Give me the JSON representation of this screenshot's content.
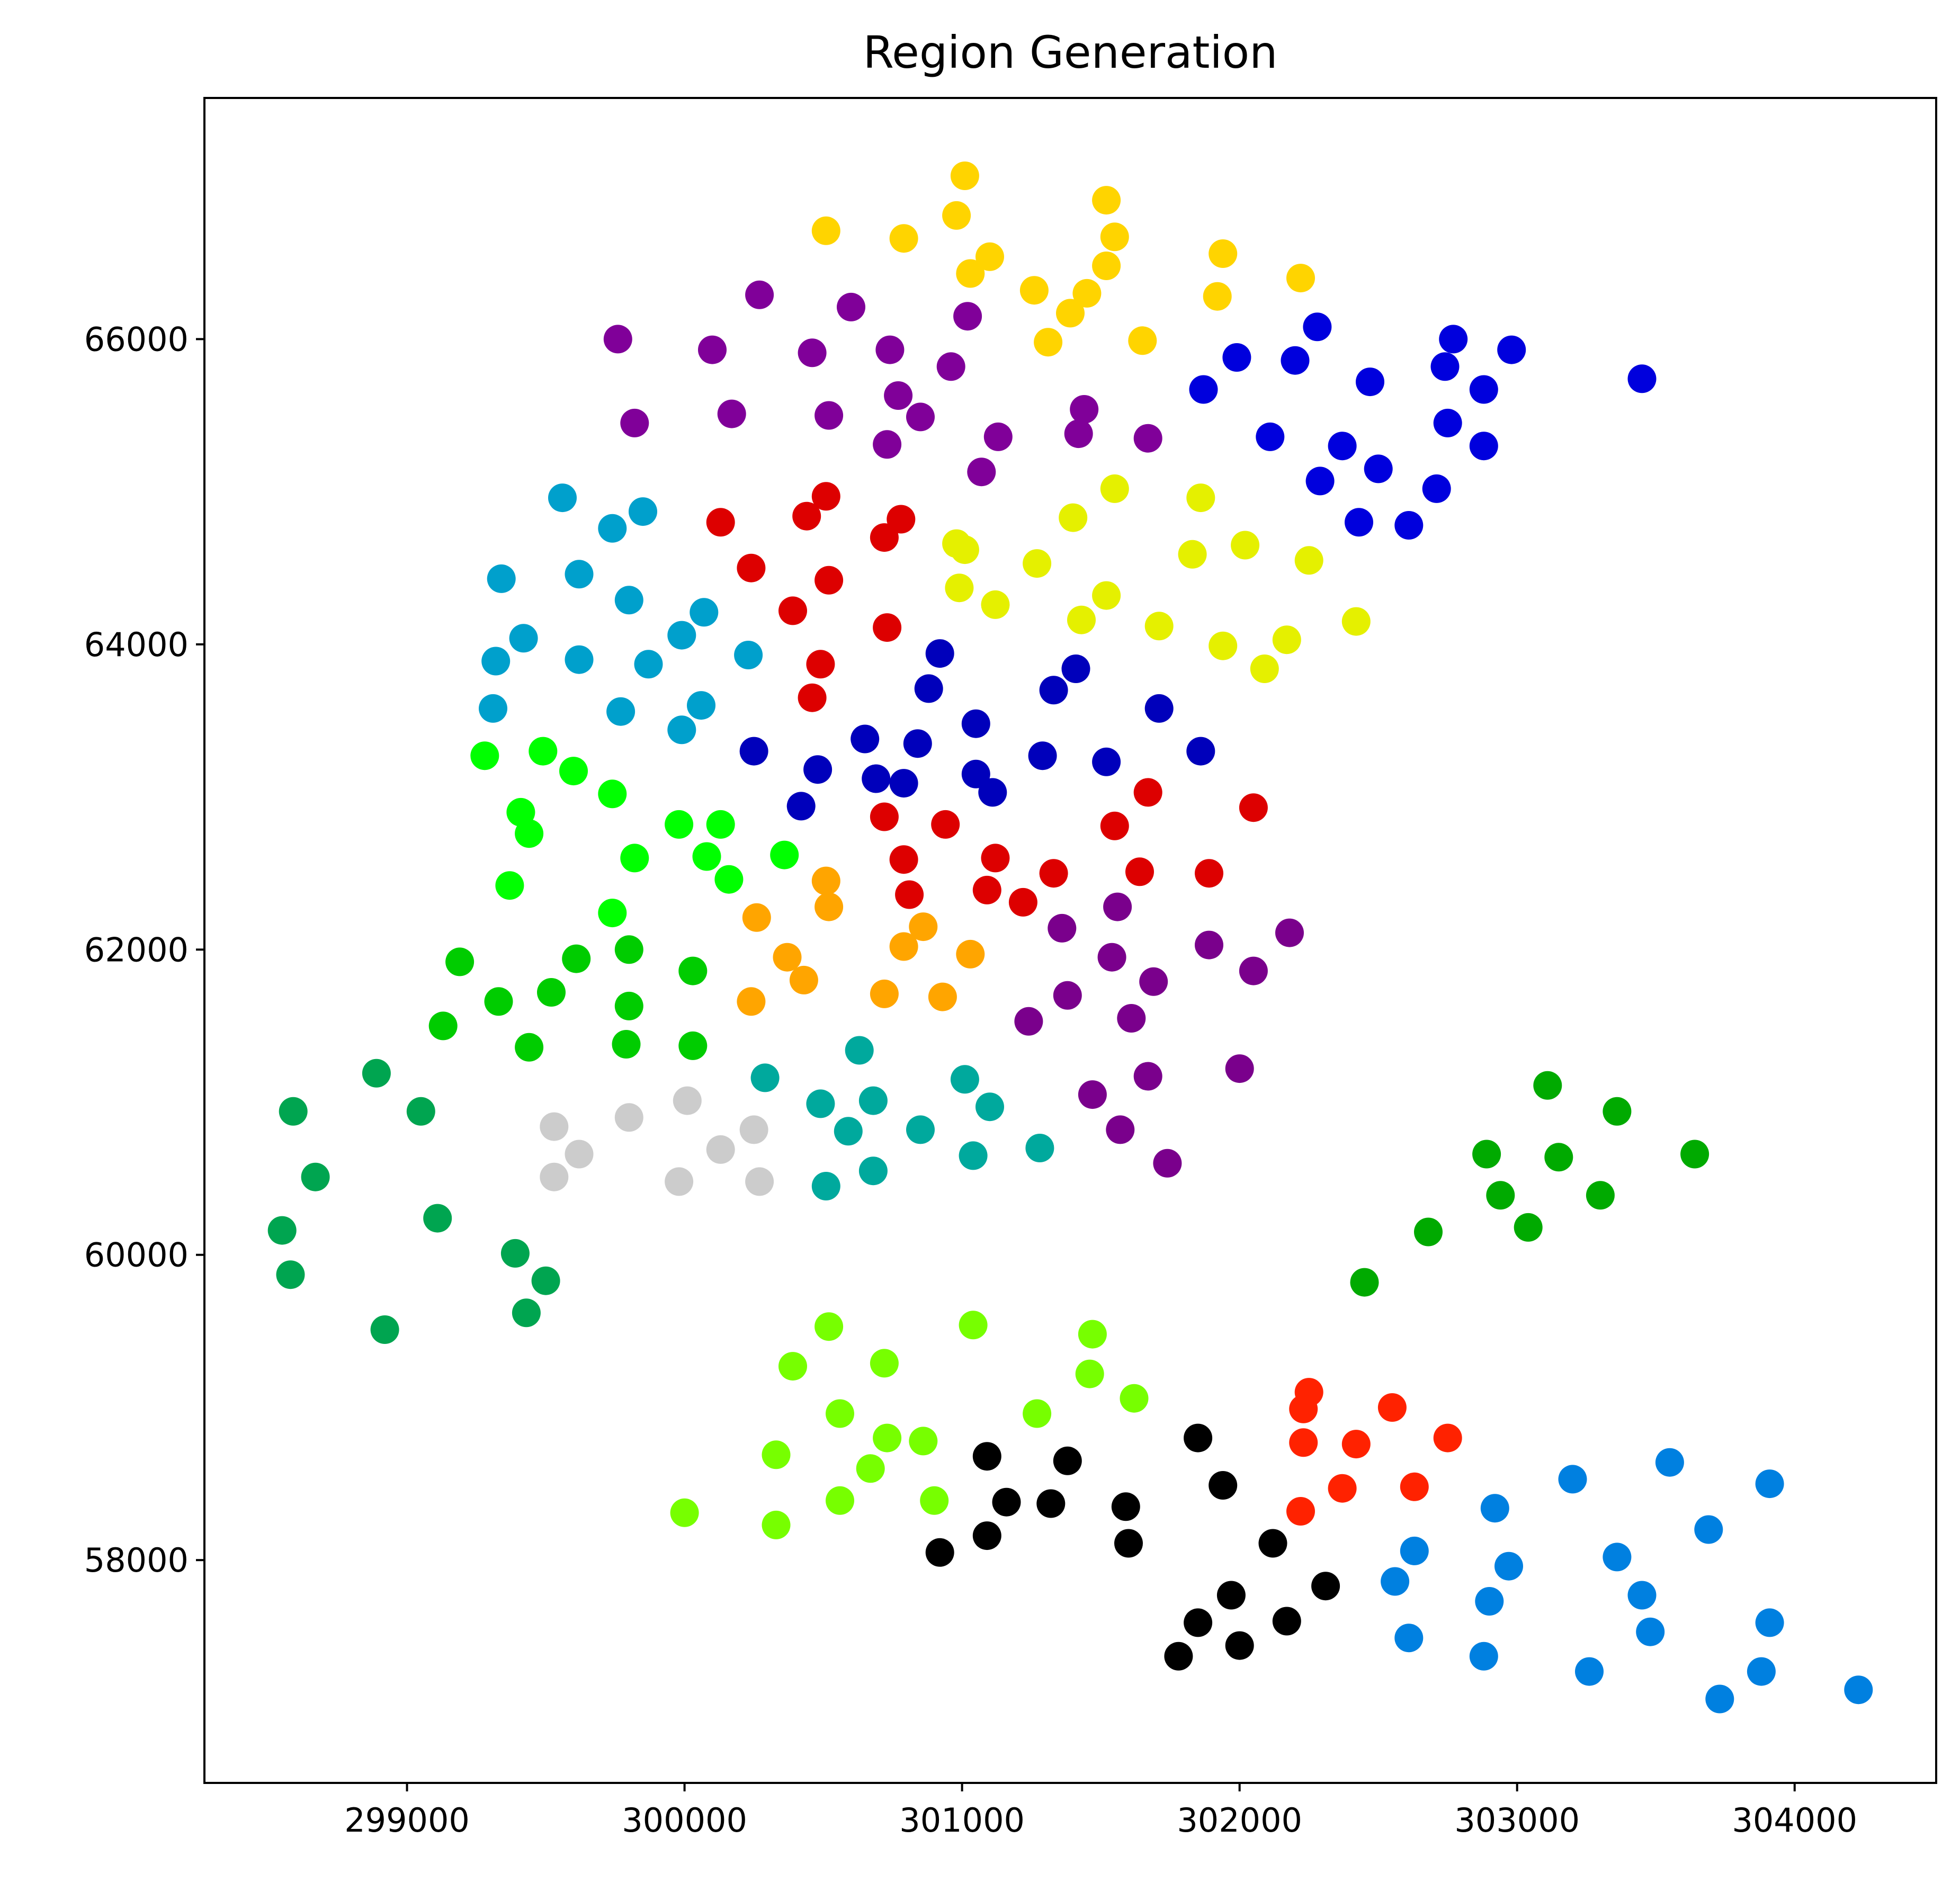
{
  "chart_data": {
    "type": "scatter",
    "title": "Region Generation",
    "xlabel": "",
    "ylabel": "",
    "xlim": [
      298270,
      304510
    ],
    "ylim": [
      56540,
      67580
    ],
    "xticks": [
      299000,
      300000,
      301000,
      302000,
      303000,
      304000
    ],
    "yticks": [
      58000,
      60000,
      62000,
      64000,
      66000
    ],
    "grid": false,
    "legend": "none",
    "marker": "circle",
    "regions": [
      {
        "color": "#ffd400",
        "points": [
          [
            301010,
            67070
          ],
          [
            300980,
            66810
          ],
          [
            301520,
            66910
          ],
          [
            300510,
            66710
          ],
          [
            300790,
            66660
          ],
          [
            301550,
            66670
          ],
          [
            301100,
            66540
          ],
          [
            301030,
            66430
          ],
          [
            301520,
            66480
          ],
          [
            301940,
            66560
          ],
          [
            302220,
            66400
          ],
          [
            301260,
            66320
          ],
          [
            301450,
            66300
          ],
          [
            301390,
            66170
          ],
          [
            301920,
            66280
          ],
          [
            301310,
            65980
          ],
          [
            301650,
            65990
          ]
        ]
      },
      {
        "color": "#800099",
        "points": [
          [
            300270,
            66290
          ],
          [
            300600,
            66210
          ],
          [
            301020,
            66150
          ],
          [
            299760,
            66000
          ],
          [
            300100,
            65930
          ],
          [
            300460,
            65910
          ],
          [
            300740,
            65930
          ],
          [
            300960,
            65820
          ],
          [
            300770,
            65630
          ],
          [
            300170,
            65510
          ],
          [
            300520,
            65500
          ],
          [
            300850,
            65490
          ],
          [
            299820,
            65450
          ],
          [
            301440,
            65540
          ],
          [
            300730,
            65310
          ],
          [
            301130,
            65360
          ],
          [
            301420,
            65380
          ],
          [
            301670,
            65350
          ],
          [
            301070,
            65130
          ]
        ]
      },
      {
        "color": "#0000dd",
        "points": [
          [
            302280,
            66080
          ],
          [
            302770,
            66000
          ],
          [
            302980,
            65930
          ],
          [
            301990,
            65880
          ],
          [
            302200,
            65860
          ],
          [
            302740,
            65820
          ],
          [
            302470,
            65720
          ],
          [
            303450,
            65740
          ],
          [
            301870,
            65670
          ],
          [
            302880,
            65670
          ],
          [
            302750,
            65450
          ],
          [
            302110,
            65360
          ],
          [
            302370,
            65300
          ],
          [
            302880,
            65300
          ],
          [
            302500,
            65150
          ],
          [
            302290,
            65070
          ],
          [
            302710,
            65020
          ],
          [
            302430,
            64800
          ],
          [
            302610,
            64780
          ]
        ]
      },
      {
        "color": "#00a0cc",
        "points": [
          [
            299560,
            64960
          ],
          [
            299850,
            64870
          ],
          [
            299740,
            64760
          ],
          [
            299340,
            64430
          ],
          [
            299620,
            64460
          ],
          [
            299800,
            64290
          ],
          [
            300070,
            64210
          ],
          [
            299990,
            64060
          ],
          [
            299420,
            64040
          ],
          [
            300230,
            63930
          ],
          [
            299320,
            63890
          ],
          [
            299620,
            63900
          ],
          [
            299870,
            63870
          ],
          [
            299310,
            63580
          ],
          [
            299770,
            63560
          ],
          [
            300060,
            63600
          ],
          [
            299990,
            63440
          ]
        ]
      },
      {
        "color": "#dd0000",
        "points": [
          [
            300510,
            64970
          ],
          [
            300130,
            64800
          ],
          [
            300440,
            64840
          ],
          [
            300780,
            64820
          ],
          [
            300720,
            64700
          ],
          [
            300240,
            64500
          ],
          [
            300520,
            64420
          ],
          [
            300390,
            64220
          ],
          [
            300730,
            64110
          ],
          [
            300490,
            63870
          ],
          [
            300460,
            63650
          ],
          [
            301670,
            63030
          ],
          [
            302050,
            62930
          ],
          [
            300720,
            62870
          ],
          [
            300940,
            62820
          ],
          [
            301550,
            62810
          ],
          [
            300790,
            62590
          ],
          [
            301120,
            62600
          ],
          [
            301330,
            62500
          ],
          [
            301640,
            62510
          ],
          [
            301890,
            62500
          ],
          [
            300810,
            62360
          ],
          [
            301090,
            62390
          ],
          [
            301220,
            62310
          ]
        ]
      },
      {
        "color": "#e5f000",
        "points": [
          [
            301550,
            65020
          ],
          [
            301860,
            64960
          ],
          [
            301400,
            64830
          ],
          [
            300980,
            64660
          ],
          [
            301010,
            64620
          ],
          [
            302020,
            64650
          ],
          [
            301830,
            64590
          ],
          [
            302250,
            64550
          ],
          [
            301270,
            64530
          ],
          [
            300990,
            64370
          ],
          [
            301520,
            64320
          ],
          [
            301120,
            64260
          ],
          [
            301430,
            64160
          ],
          [
            302420,
            64150
          ],
          [
            301710,
            64120
          ],
          [
            302170,
            64030
          ],
          [
            301940,
            63990
          ],
          [
            302090,
            63840
          ]
        ]
      },
      {
        "color": "#0000bb",
        "points": [
          [
            300920,
            63940
          ],
          [
            301410,
            63840
          ],
          [
            300880,
            63710
          ],
          [
            301330,
            63700
          ],
          [
            301710,
            63580
          ],
          [
            301050,
            63480
          ],
          [
            300650,
            63380
          ],
          [
            300840,
            63350
          ],
          [
            300250,
            63300
          ],
          [
            301290,
            63270
          ],
          [
            301520,
            63230
          ],
          [
            301860,
            63300
          ],
          [
            300480,
            63180
          ],
          [
            301050,
            63150
          ],
          [
            300690,
            63120
          ],
          [
            300790,
            63090
          ],
          [
            301110,
            63030
          ],
          [
            300420,
            62940
          ]
        ]
      },
      {
        "color": "#00ff00",
        "points": [
          [
            299490,
            63300
          ],
          [
            299280,
            63270
          ],
          [
            299600,
            63170
          ],
          [
            299740,
            63020
          ],
          [
            299410,
            62900
          ],
          [
            299440,
            62760
          ],
          [
            299980,
            62820
          ],
          [
            300130,
            62820
          ],
          [
            300360,
            62620
          ],
          [
            299820,
            62600
          ],
          [
            300080,
            62610
          ],
          [
            300160,
            62460
          ],
          [
            299370,
            62420
          ],
          [
            299740,
            62240
          ]
        ]
      },
      {
        "color": "#ffa500",
        "points": [
          [
            300510,
            62450
          ],
          [
            300520,
            62280
          ],
          [
            300260,
            62210
          ],
          [
            300860,
            62150
          ],
          [
            300790,
            62020
          ],
          [
            301030,
            61970
          ],
          [
            300370,
            61950
          ],
          [
            300430,
            61800
          ],
          [
            300720,
            61710
          ],
          [
            300930,
            61690
          ],
          [
            300240,
            61660
          ]
        ]
      },
      {
        "color": "#7a008c",
        "points": [
          [
            301360,
            62140
          ],
          [
            301560,
            62280
          ],
          [
            302180,
            62110
          ],
          [
            301890,
            62030
          ],
          [
            301540,
            61950
          ],
          [
            302050,
            61860
          ],
          [
            301690,
            61790
          ],
          [
            301380,
            61700
          ],
          [
            301240,
            61530
          ],
          [
            301610,
            61550
          ],
          [
            302000,
            61220
          ],
          [
            301670,
            61170
          ],
          [
            301470,
            61050
          ],
          [
            301570,
            60820
          ],
          [
            301740,
            60600
          ]
        ]
      },
      {
        "color": "#00cc00",
        "points": [
          [
            299190,
            61920
          ],
          [
            299610,
            61940
          ],
          [
            299800,
            62000
          ],
          [
            300030,
            61860
          ],
          [
            299330,
            61660
          ],
          [
            299520,
            61720
          ],
          [
            299800,
            61630
          ],
          [
            299130,
            61500
          ],
          [
            299440,
            61360
          ],
          [
            299790,
            61380
          ],
          [
            300030,
            61370
          ]
        ]
      },
      {
        "color": "#00a99d",
        "points": [
          [
            300630,
            61340
          ],
          [
            300290,
            61160
          ],
          [
            301010,
            61150
          ],
          [
            300490,
            60990
          ],
          [
            300680,
            61010
          ],
          [
            301100,
            60970
          ],
          [
            300590,
            60810
          ],
          [
            300850,
            60820
          ],
          [
            301280,
            60700
          ],
          [
            301040,
            60650
          ],
          [
            300680,
            60550
          ],
          [
            300510,
            60450
          ]
        ]
      },
      {
        "color": "#cccccc",
        "points": [
          [
            300010,
            61010
          ],
          [
            299800,
            60900
          ],
          [
            299530,
            60840
          ],
          [
            300250,
            60820
          ],
          [
            300130,
            60690
          ],
          [
            299620,
            60660
          ],
          [
            299530,
            60510
          ],
          [
            299980,
            60480
          ],
          [
            300270,
            60480
          ]
        ]
      },
      {
        "color": "#00a550",
        "points": [
          [
            298890,
            61190
          ],
          [
            298590,
            60940
          ],
          [
            299050,
            60940
          ],
          [
            298670,
            60510
          ],
          [
            299110,
            60240
          ],
          [
            298550,
            60160
          ],
          [
            299390,
            60010
          ],
          [
            298580,
            59870
          ],
          [
            299500,
            59830
          ],
          [
            299430,
            59620
          ],
          [
            298920,
            59510
          ]
        ]
      },
      {
        "color": "#00aa00",
        "points": [
          [
            303110,
            61110
          ],
          [
            303360,
            60940
          ],
          [
            302890,
            60660
          ],
          [
            303150,
            60640
          ],
          [
            303640,
            60660
          ],
          [
            302940,
            60390
          ],
          [
            303300,
            60390
          ],
          [
            303040,
            60180
          ],
          [
            302680,
            60150
          ],
          [
            302450,
            59820
          ]
        ]
      },
      {
        "color": "#77ff00",
        "points": [
          [
            300520,
            59530
          ],
          [
            301040,
            59540
          ],
          [
            301470,
            59480
          ],
          [
            300720,
            59290
          ],
          [
            300390,
            59270
          ],
          [
            301460,
            59220
          ],
          [
            301620,
            59060
          ],
          [
            300560,
            58960
          ],
          [
            301270,
            58960
          ],
          [
            300730,
            58800
          ],
          [
            300860,
            58780
          ],
          [
            300330,
            58690
          ],
          [
            300670,
            58600
          ],
          [
            300560,
            58390
          ],
          [
            300900,
            58390
          ],
          [
            300000,
            58310
          ],
          [
            300330,
            58230
          ]
        ]
      },
      {
        "color": "#ff2200",
        "points": [
          [
            302250,
            59100
          ],
          [
            302550,
            59000
          ],
          [
            302230,
            58990
          ],
          [
            302230,
            58770
          ],
          [
            302750,
            58800
          ],
          [
            302420,
            58760
          ],
          [
            302370,
            58470
          ],
          [
            302630,
            58480
          ],
          [
            302220,
            58320
          ]
        ]
      },
      {
        "color": "#000000",
        "points": [
          [
            301850,
            58800
          ],
          [
            301090,
            58680
          ],
          [
            301380,
            58650
          ],
          [
            301940,
            58490
          ],
          [
            301160,
            58380
          ],
          [
            301320,
            58370
          ],
          [
            301590,
            58350
          ],
          [
            302120,
            58110
          ],
          [
            301090,
            58160
          ],
          [
            301600,
            58110
          ],
          [
            300920,
            58050
          ],
          [
            302310,
            57830
          ],
          [
            301970,
            57770
          ],
          [
            301850,
            57590
          ],
          [
            302170,
            57600
          ],
          [
            302000,
            57440
          ],
          [
            301780,
            57370
          ]
        ]
      },
      {
        "color": "#0080e0",
        "points": [
          [
            303550,
            58640
          ],
          [
            303200,
            58530
          ],
          [
            303910,
            58500
          ],
          [
            302920,
            58340
          ],
          [
            303690,
            58200
          ],
          [
            302630,
            58060
          ],
          [
            303360,
            58020
          ],
          [
            302970,
            57960
          ],
          [
            302560,
            57860
          ],
          [
            303450,
            57770
          ],
          [
            302900,
            57730
          ],
          [
            303480,
            57530
          ],
          [
            303910,
            57590
          ],
          [
            302610,
            57490
          ],
          [
            302880,
            57370
          ],
          [
            303260,
            57270
          ],
          [
            303880,
            57270
          ],
          [
            304230,
            57150
          ],
          [
            303730,
            57090
          ]
        ]
      }
    ]
  }
}
